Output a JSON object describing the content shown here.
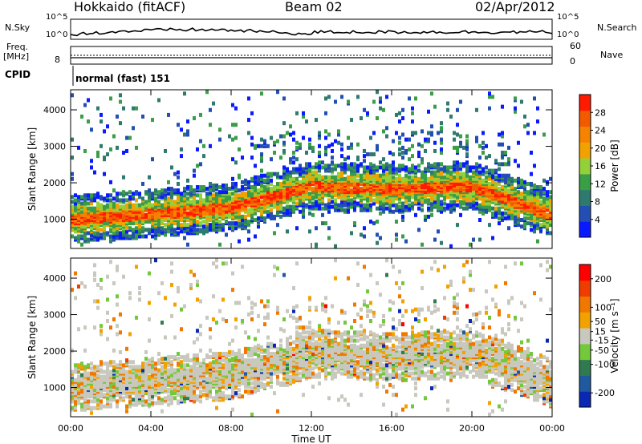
{
  "header": {
    "site": "Hokkaido (fitACF)",
    "beam": "Beam 02",
    "date": "02/Apr/2012"
  },
  "left_labels": {
    "nsky": "N.Sky",
    "freq": "Freq.",
    "mhz": "[MHz]",
    "cpid": "CPID"
  },
  "right_labels": {
    "nsearch": "N.Search",
    "nave": "Nave"
  },
  "strip_ticks": {
    "noise_top": "10^5",
    "noise_bottom": "10^0",
    "freq_top_right": "60",
    "freq_bottom_right": "0",
    "freq_left": "8"
  },
  "cpid_text": "normal (fast) 151",
  "colors": {
    "power": [
      "#0a1aff",
      "#234fb4",
      "#2f7a6e",
      "#3a9e46",
      "#94d03a",
      "#f2a200",
      "#f58200",
      "#f25a00",
      "#ff1a00"
    ],
    "velocity": [
      "#0a28b4",
      "#1f5aa0",
      "#2f7a50",
      "#74c83c",
      "#c8c8be",
      "#f2a200",
      "#f07800",
      "#f03c00",
      "#ff0000"
    ]
  },
  "chart_data": [
    {
      "type": "heatmap",
      "name": "power",
      "xlabel": "",
      "ylabel": "Slant Range [km]",
      "xlim_hours": [
        0,
        24
      ],
      "ylim": [
        200,
        4550
      ],
      "yticks": [
        "1000",
        "2000",
        "3000",
        "4000"
      ],
      "colorbar_label": "Power [dB]",
      "colorbar_ticks": [
        "4",
        "8",
        "12",
        "16",
        "20",
        "24",
        "28"
      ],
      "colorbar_range": [
        0,
        32
      ]
    },
    {
      "type": "heatmap",
      "name": "velocity",
      "xlabel": "Time UT",
      "ylabel": "Slant Range [km]",
      "xlim_hours": [
        0,
        24
      ],
      "ylim": [
        200,
        4550
      ],
      "xticks": [
        "00:00",
        "04:00",
        "08:00",
        "12:00",
        "16:00",
        "20:00",
        "00:00"
      ],
      "yticks": [
        "1000",
        "2000",
        "3000",
        "4000"
      ],
      "colorbar_label": "Velocity [m s⁻¹]",
      "colorbar_ticks": [
        "200",
        "100",
        "50",
        "15",
        "-15",
        "-50",
        "-100",
        "-200"
      ],
      "colorbar_range": [
        -250,
        250
      ]
    }
  ]
}
